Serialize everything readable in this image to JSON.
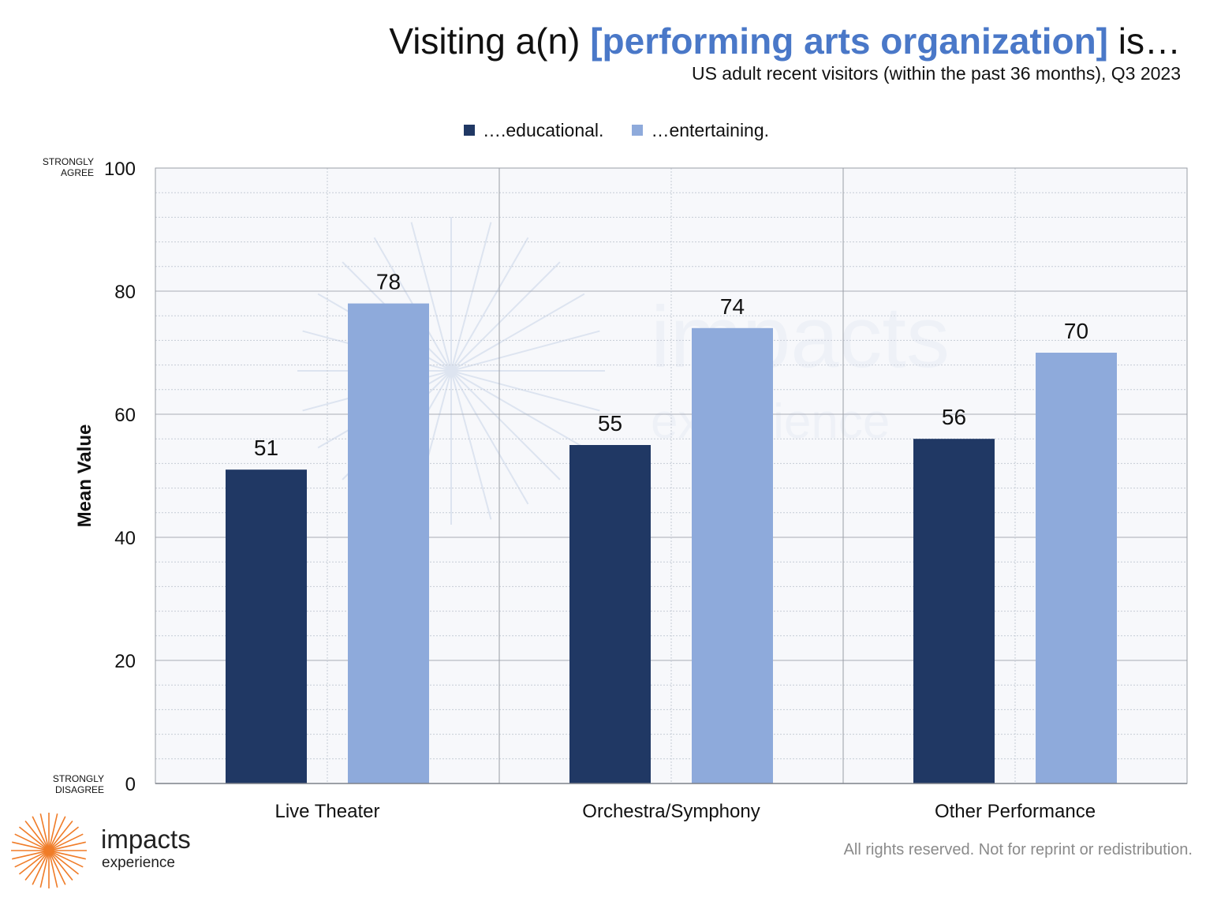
{
  "title": {
    "prefix": "Visiting a(n) ",
    "highlight": "[performing arts organization]",
    "suffix": " is…"
  },
  "subtitle": "US adult recent visitors (within the past 36 months), Q3 2023",
  "footer": "All rights reserved. Not for reprint or redistribution.",
  "logo": {
    "word": "impacts",
    "sub": "experience",
    "color": "#f07c28"
  },
  "watermark": {
    "word": "impacts",
    "sub": "experience"
  },
  "colors": {
    "educational": "#203864",
    "entertaining": "#8eaadb",
    "title_highlight": "#4a78c8"
  },
  "chart_data": {
    "type": "bar",
    "categories": [
      "Live Theater",
      "Orchestra/Symphony",
      "Other Performance"
    ],
    "series": [
      {
        "name": "….educational.",
        "values": [
          51,
          55,
          56
        ]
      },
      {
        "name": "…entertaining.",
        "values": [
          78,
          74,
          70
        ]
      }
    ],
    "ylabel": "Mean Value",
    "ylim": [
      0,
      100
    ],
    "yticks": [
      0,
      20,
      40,
      60,
      80,
      100
    ],
    "y_anchor_labels": {
      "top": [
        "STRONGLY",
        "AGREE"
      ],
      "bottom": [
        "STRONGLY",
        "DISAGREE"
      ]
    },
    "legend_position": "top-center",
    "grid": true,
    "data_labels": true
  }
}
